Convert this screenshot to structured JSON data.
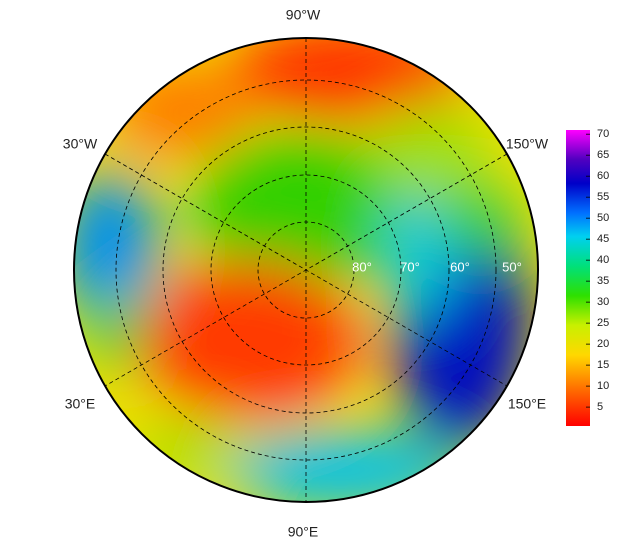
{
  "map": {
    "longitude_labels": {
      "top": "90°W",
      "upper_left": "30°W",
      "upper_right": "150°W",
      "lower_left": "30°E",
      "lower_right": "150°E",
      "bottom": "90°E"
    },
    "latitude_labels": [
      "80°",
      "70°",
      "60°",
      "50°"
    ]
  },
  "colorbar": {
    "lim": [
      0.5,
      71
    ],
    "ticks": [
      5,
      10,
      15,
      20,
      25,
      30,
      35,
      40,
      45,
      50,
      55,
      60,
      65,
      70
    ]
  }
}
